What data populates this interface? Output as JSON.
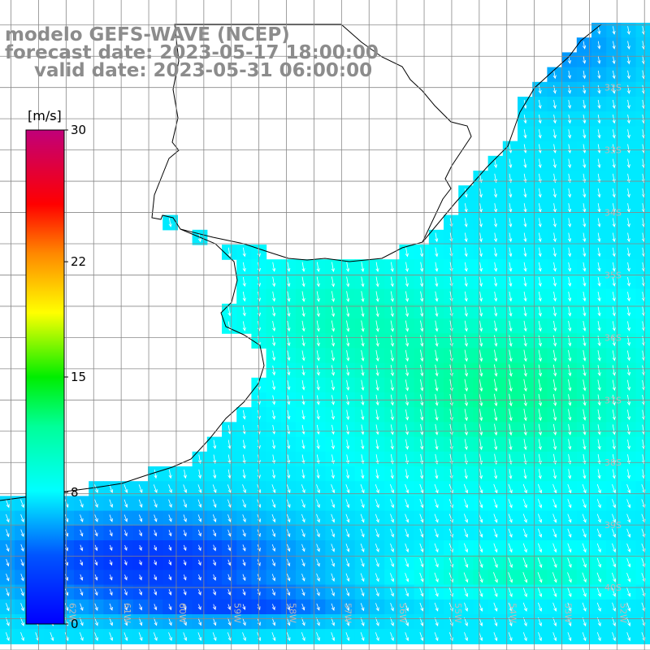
{
  "title": {
    "model": "modelo GEFS-WAVE (NCEP)",
    "forecast": "forecast date: 2023-05-17 18:00:00",
    "valid": "valid date: 2023-05-31 06:00:00"
  },
  "colorbar": {
    "unit": "[m/s]",
    "ticks": [
      {
        "label": "30",
        "value": 30
      },
      {
        "label": "22",
        "value": 22
      },
      {
        "label": "15",
        "value": 15
      },
      {
        "label": "8",
        "value": 8
      },
      {
        "label": "0",
        "value": 0
      }
    ],
    "min": 0,
    "max": 30,
    "colors": [
      "#0000ff",
      "#00aaff",
      "#00ffff",
      "#00ff00",
      "#ffff00",
      "#ff8000",
      "#ff0000",
      "#c0007a"
    ]
  },
  "lat_labels": [
    {
      "label": "32S",
      "lat": -32
    },
    {
      "label": "33S",
      "lat": -33
    },
    {
      "label": "34S",
      "lat": -34
    },
    {
      "label": "35S",
      "lat": -35
    },
    {
      "label": "36S",
      "lat": -36
    },
    {
      "label": "37S",
      "lat": -37
    },
    {
      "label": "38S",
      "lat": -38
    },
    {
      "label": "39S",
      "lat": -39
    },
    {
      "label": "40S",
      "lat": -40
    }
  ],
  "lon_labels": [
    {
      "label": "62W",
      "lon": -62
    },
    {
      "label": "61W",
      "lon": -61
    },
    {
      "label": "60W",
      "lon": -60
    },
    {
      "label": "59W",
      "lon": -59
    },
    {
      "label": "58W",
      "lon": -58
    },
    {
      "label": "57W",
      "lon": -57
    },
    {
      "label": "56W",
      "lon": -56
    },
    {
      "label": "55W",
      "lon": -55
    },
    {
      "label": "54W",
      "lon": -54
    },
    {
      "label": "53W",
      "lon": -53
    },
    {
      "label": "52W",
      "lon": -52
    }
  ],
  "map_extent": {
    "lon_min": -63.2,
    "lon_max": -51.4,
    "lat_min": -41.0,
    "lat_max": -30.6
  }
}
